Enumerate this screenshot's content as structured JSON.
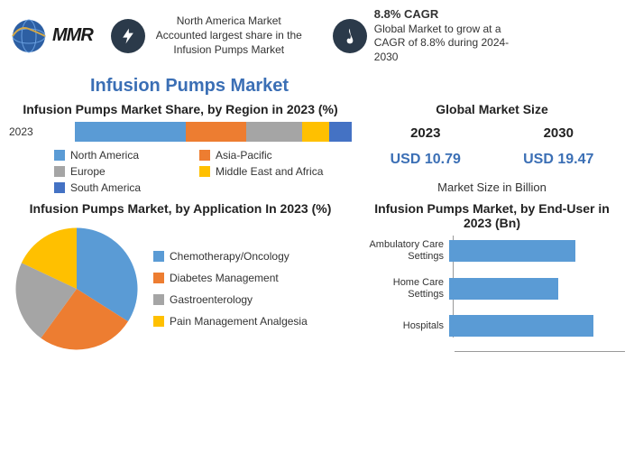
{
  "logo": {
    "text": "MMR"
  },
  "stat1": {
    "icon_bg": "#2b3a4a",
    "text": "North America Market Accounted largest share in the Infusion Pumps Market"
  },
  "stat2": {
    "icon_bg": "#2b3a4a",
    "title": "8.8% CAGR",
    "text": "Global Market to grow at a CAGR of 8.8% during 2024-2030"
  },
  "main_title": "Infusion Pumps Market",
  "region_chart": {
    "title": "Infusion Pumps Market Share, by Region in 2023 (%)",
    "year_label": "2023",
    "segments": [
      {
        "label": "North America",
        "value": 40,
        "color": "#5a9bd5"
      },
      {
        "label": "Asia-Pacific",
        "value": 22,
        "color": "#ed7d31"
      },
      {
        "label": "Europe",
        "value": 20,
        "color": "#a5a5a5"
      },
      {
        "label": "Middle East and Africa",
        "value": 10,
        "color": "#ffc000"
      },
      {
        "label": "South America",
        "value": 8,
        "color": "#4472c4"
      }
    ]
  },
  "market_size": {
    "title": "Global Market Size",
    "years": [
      "2023",
      "2030"
    ],
    "values": [
      "USD 10.79",
      "USD 19.47"
    ],
    "subtitle": "Market Size in Billion",
    "value_color": "#3b6fb5"
  },
  "pie_chart": {
    "title": "Infusion Pumps Market, by Application In 2023 (%)",
    "slices": [
      {
        "label": "Chemotherapy/Oncology",
        "value": 34,
        "color": "#5a9bd5"
      },
      {
        "label": "Diabetes Management",
        "value": 26,
        "color": "#ed7d31"
      },
      {
        "label": "Gastroenterology",
        "value": 22,
        "color": "#a5a5a5"
      },
      {
        "label": "Pain Management Analgesia",
        "value": 18,
        "color": "#ffc000"
      }
    ]
  },
  "hbar_chart": {
    "title": "Infusion Pumps Market, by End-User in 2023 (Bn)",
    "bar_color": "#5a9bd5",
    "max": 100,
    "items": [
      {
        "label": "Ambulatory Care Settings",
        "value": 72
      },
      {
        "label": "Home Care Settings",
        "value": 62
      },
      {
        "label": "Hospitals",
        "value": 82
      }
    ]
  }
}
